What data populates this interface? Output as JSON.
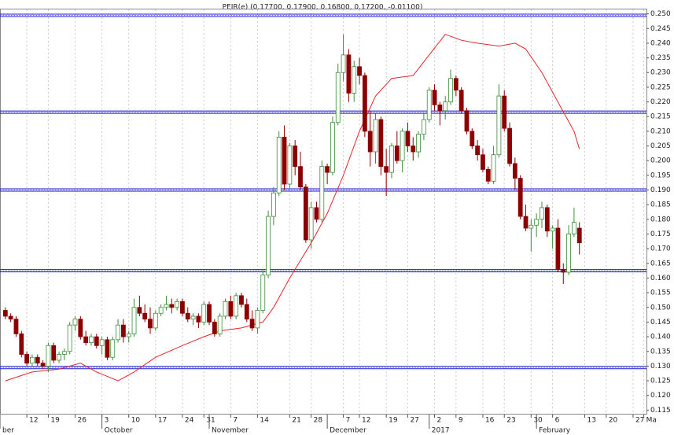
{
  "chart_data": {
    "type": "candlestick",
    "title": "PEIR(e) (0.17700, 0.17900, 0.16800, 0.17200, -0.01100)",
    "up_color": "#3c8c3c",
    "down_color": "#8b0000",
    "ma_color": "#e8242c",
    "hline_color": "#1a1acc",
    "grid": true,
    "ylim": [
      0.1135,
      0.2515
    ],
    "yticks": [
      0.115,
      {
        "value": 0.12,
        "label": "0.120"
      },
      0.125,
      {
        "value": 0.13,
        "label": "0.130"
      },
      0.135,
      {
        "value": 0.14,
        "label": "0.140"
      },
      0.145,
      {
        "value": 0.15,
        "label": "0.150"
      },
      0.155,
      {
        "value": 0.16,
        "label": "0.160"
      },
      0.165,
      {
        "value": 0.17,
        "label": "0.170"
      },
      0.175,
      {
        "value": 0.18,
        "label": "0.180"
      },
      0.185,
      {
        "value": 0.19,
        "label": "0.190"
      },
      0.195,
      {
        "value": 0.2,
        "label": "0.200"
      },
      0.205,
      {
        "value": 0.21,
        "label": "0.210"
      },
      0.215,
      {
        "value": 0.22,
        "label": "0.220"
      },
      0.225,
      {
        "value": 0.23,
        "label": "0.230"
      },
      0.235,
      {
        "value": 0.24,
        "label": "0.240"
      },
      0.245,
      {
        "value": 0.25,
        "label": "0.250"
      }
    ],
    "xlim": [
      -1,
      119.5
    ],
    "xticks": [
      {
        "value": 4,
        "label": "12"
      },
      {
        "value": 8,
        "label": "19"
      },
      {
        "value": 13,
        "label": "26"
      },
      {
        "value": 18,
        "label": "3"
      },
      {
        "value": 23,
        "label": "10"
      },
      {
        "value": 28,
        "label": "17"
      },
      {
        "value": 33,
        "label": "24"
      },
      {
        "value": 37,
        "label": "31"
      },
      {
        "value": 42,
        "label": "7"
      },
      {
        "value": 47,
        "label": "14"
      },
      {
        "value": 53,
        "label": "21"
      },
      {
        "value": 57,
        "label": "28"
      },
      {
        "value": 63,
        "label": "7"
      },
      {
        "value": 66,
        "label": "12"
      },
      {
        "value": 71,
        "label": "19"
      },
      {
        "value": 75,
        "label": "27"
      },
      {
        "value": 80,
        "label": "2"
      },
      {
        "value": 84,
        "label": "9"
      },
      {
        "value": 89,
        "label": "16"
      },
      {
        "value": 93,
        "label": "23"
      },
      {
        "value": 98,
        "label": "30"
      },
      {
        "value": 102,
        "label": "6"
      },
      {
        "value": 108,
        "label": "13"
      },
      {
        "value": 112,
        "label": "20"
      },
      {
        "value": 117,
        "label": "27"
      },
      {
        "value": 119,
        "label": "Ma"
      }
    ],
    "month_labels": [
      {
        "value": -1,
        "label": "ber"
      },
      {
        "value": 18,
        "label": "October"
      },
      {
        "value": 38,
        "label": "November"
      },
      {
        "value": 60,
        "label": "December"
      },
      {
        "value": 79,
        "label": "2017"
      },
      {
        "value": 99,
        "label": "February"
      }
    ],
    "hlines": [
      0.2495,
      0.2165,
      0.19,
      0.1625,
      0.1295
    ],
    "ohlc": [
      [
        0.149,
        0.15,
        0.146,
        0.147
      ],
      [
        0.147,
        0.148,
        0.145,
        0.146
      ],
      [
        0.146,
        0.147,
        0.14,
        0.141
      ],
      [
        0.141,
        0.142,
        0.133,
        0.134
      ],
      [
        0.134,
        0.135,
        0.13,
        0.131
      ],
      [
        0.131,
        0.134,
        0.13,
        0.133
      ],
      [
        0.133,
        0.134,
        0.13,
        0.131
      ],
      [
        0.131,
        0.132,
        0.129,
        0.13
      ],
      [
        0.13,
        0.138,
        0.128,
        0.137
      ],
      [
        0.137,
        0.138,
        0.131,
        0.132
      ],
      [
        0.132,
        0.135,
        0.131,
        0.134
      ],
      [
        0.134,
        0.136,
        0.132,
        0.135
      ],
      [
        0.135,
        0.145,
        0.134,
        0.144
      ],
      [
        0.144,
        0.147,
        0.142,
        0.146
      ],
      [
        0.146,
        0.147,
        0.139,
        0.14
      ],
      [
        0.14,
        0.142,
        0.137,
        0.138
      ],
      [
        0.138,
        0.141,
        0.137,
        0.14
      ],
      [
        0.14,
        0.141,
        0.136,
        0.137
      ],
      [
        0.137,
        0.14,
        0.134,
        0.139
      ],
      [
        0.139,
        0.14,
        0.132,
        0.133
      ],
      [
        0.133,
        0.14,
        0.132,
        0.139
      ],
      [
        0.139,
        0.146,
        0.138,
        0.144
      ],
      [
        0.144,
        0.146,
        0.138,
        0.14
      ],
      [
        0.14,
        0.142,
        0.138,
        0.141
      ],
      [
        0.141,
        0.153,
        0.14,
        0.15
      ],
      [
        0.15,
        0.154,
        0.147,
        0.148
      ],
      [
        0.148,
        0.151,
        0.145,
        0.146
      ],
      [
        0.146,
        0.15,
        0.141,
        0.143
      ],
      [
        0.143,
        0.149,
        0.142,
        0.148
      ],
      [
        0.148,
        0.151,
        0.147,
        0.15
      ],
      [
        0.15,
        0.154,
        0.149,
        0.151
      ],
      [
        0.151,
        0.153,
        0.148,
        0.15
      ],
      [
        0.15,
        0.153,
        0.149,
        0.152
      ],
      [
        0.152,
        0.153,
        0.147,
        0.148
      ],
      [
        0.148,
        0.15,
        0.145,
        0.146
      ],
      [
        0.146,
        0.148,
        0.144,
        0.147
      ],
      [
        0.147,
        0.148,
        0.143,
        0.145
      ],
      [
        0.145,
        0.152,
        0.144,
        0.151
      ],
      [
        0.151,
        0.152,
        0.144,
        0.145
      ],
      [
        0.145,
        0.146,
        0.14,
        0.141
      ],
      [
        0.141,
        0.148,
        0.14,
        0.147
      ],
      [
        0.147,
        0.153,
        0.146,
        0.152
      ],
      [
        0.152,
        0.154,
        0.146,
        0.147
      ],
      [
        0.147,
        0.155,
        0.146,
        0.154
      ],
      [
        0.154,
        0.155,
        0.15,
        0.151
      ],
      [
        0.151,
        0.153,
        0.145,
        0.146
      ],
      [
        0.146,
        0.149,
        0.142,
        0.143
      ],
      [
        0.143,
        0.15,
        0.141,
        0.149
      ],
      [
        0.149,
        0.163,
        0.148,
        0.161
      ],
      [
        0.161,
        0.183,
        0.16,
        0.181
      ],
      [
        0.181,
        0.191,
        0.178,
        0.189
      ],
      [
        0.189,
        0.21,
        0.188,
        0.208
      ],
      [
        0.208,
        0.212,
        0.19,
        0.192
      ],
      [
        0.192,
        0.206,
        0.19,
        0.205
      ],
      [
        0.205,
        0.207,
        0.195,
        0.198
      ],
      [
        0.198,
        0.203,
        0.19,
        0.191
      ],
      [
        0.191,
        0.192,
        0.172,
        0.173
      ],
      [
        0.173,
        0.186,
        0.17,
        0.184
      ],
      [
        0.184,
        0.186,
        0.179,
        0.18
      ],
      [
        0.18,
        0.2,
        0.179,
        0.198
      ],
      [
        0.198,
        0.199,
        0.192,
        0.196
      ],
      [
        0.196,
        0.215,
        0.195,
        0.213
      ],
      [
        0.213,
        0.233,
        0.212,
        0.23
      ],
      [
        0.23,
        0.243,
        0.227,
        0.236
      ],
      [
        0.236,
        0.238,
        0.22,
        0.223
      ],
      [
        0.223,
        0.234,
        0.22,
        0.232
      ],
      [
        0.232,
        0.235,
        0.226,
        0.229
      ],
      [
        0.229,
        0.23,
        0.208,
        0.21
      ],
      [
        0.21,
        0.217,
        0.198,
        0.203
      ],
      [
        0.203,
        0.216,
        0.199,
        0.214
      ],
      [
        0.214,
        0.215,
        0.195,
        0.198
      ],
      [
        0.198,
        0.204,
        0.188,
        0.196
      ],
      [
        0.196,
        0.206,
        0.194,
        0.205
      ],
      [
        0.205,
        0.21,
        0.199,
        0.2
      ],
      [
        0.2,
        0.211,
        0.196,
        0.21
      ],
      [
        0.21,
        0.213,
        0.203,
        0.205
      ],
      [
        0.205,
        0.208,
        0.2,
        0.203
      ],
      [
        0.203,
        0.21,
        0.201,
        0.209
      ],
      [
        0.209,
        0.216,
        0.207,
        0.214
      ],
      [
        0.214,
        0.225,
        0.213,
        0.224
      ],
      [
        0.224,
        0.226,
        0.217,
        0.219
      ],
      [
        0.219,
        0.22,
        0.212,
        0.217
      ],
      [
        0.217,
        0.222,
        0.214,
        0.22
      ],
      [
        0.22,
        0.231,
        0.219,
        0.228
      ],
      [
        0.228,
        0.229,
        0.222,
        0.224
      ],
      [
        0.224,
        0.225,
        0.216,
        0.217
      ],
      [
        0.217,
        0.218,
        0.209,
        0.21
      ],
      [
        0.21,
        0.211,
        0.204,
        0.205
      ],
      [
        0.205,
        0.207,
        0.2,
        0.202
      ],
      [
        0.202,
        0.204,
        0.196,
        0.197
      ],
      [
        0.197,
        0.198,
        0.192,
        0.193
      ],
      [
        0.193,
        0.205,
        0.192,
        0.202
      ],
      [
        0.202,
        0.226,
        0.201,
        0.222
      ],
      [
        0.222,
        0.224,
        0.21,
        0.211
      ],
      [
        0.211,
        0.213,
        0.198,
        0.199
      ],
      [
        0.199,
        0.201,
        0.19,
        0.194
      ],
      [
        0.194,
        0.195,
        0.18,
        0.181
      ],
      [
        0.181,
        0.185,
        0.176,
        0.177
      ],
      [
        0.177,
        0.18,
        0.169,
        0.178
      ],
      [
        0.178,
        0.182,
        0.174,
        0.18
      ],
      [
        0.18,
        0.186,
        0.177,
        0.184
      ],
      [
        0.184,
        0.185,
        0.174,
        0.176
      ],
      [
        0.176,
        0.178,
        0.17,
        0.177
      ],
      [
        0.177,
        0.18,
        0.162,
        0.163
      ],
      [
        0.163,
        0.165,
        0.158,
        0.162
      ],
      [
        0.162,
        0.178,
        0.161,
        0.175
      ],
      [
        0.175,
        0.184,
        0.174,
        0.179
      ],
      [
        0.177,
        0.179,
        0.168,
        0.172
      ]
    ],
    "ma": {
      "x": [
        0,
        5,
        10,
        14,
        17,
        21,
        24,
        28,
        33,
        37,
        40,
        44,
        48,
        50,
        53,
        57,
        60,
        63,
        66,
        69,
        72,
        76,
        79,
        82,
        85,
        88,
        92,
        95,
        97,
        100,
        103,
        106,
        107
      ],
      "values": [
        0.125,
        0.128,
        0.129,
        0.131,
        0.128,
        0.125,
        0.128,
        0.133,
        0.137,
        0.14,
        0.142,
        0.143,
        0.145,
        0.15,
        0.16,
        0.172,
        0.182,
        0.195,
        0.21,
        0.222,
        0.228,
        0.229,
        0.236,
        0.243,
        0.241,
        0.24,
        0.239,
        0.24,
        0.238,
        0.23,
        0.22,
        0.21,
        0.204
      ]
    }
  }
}
